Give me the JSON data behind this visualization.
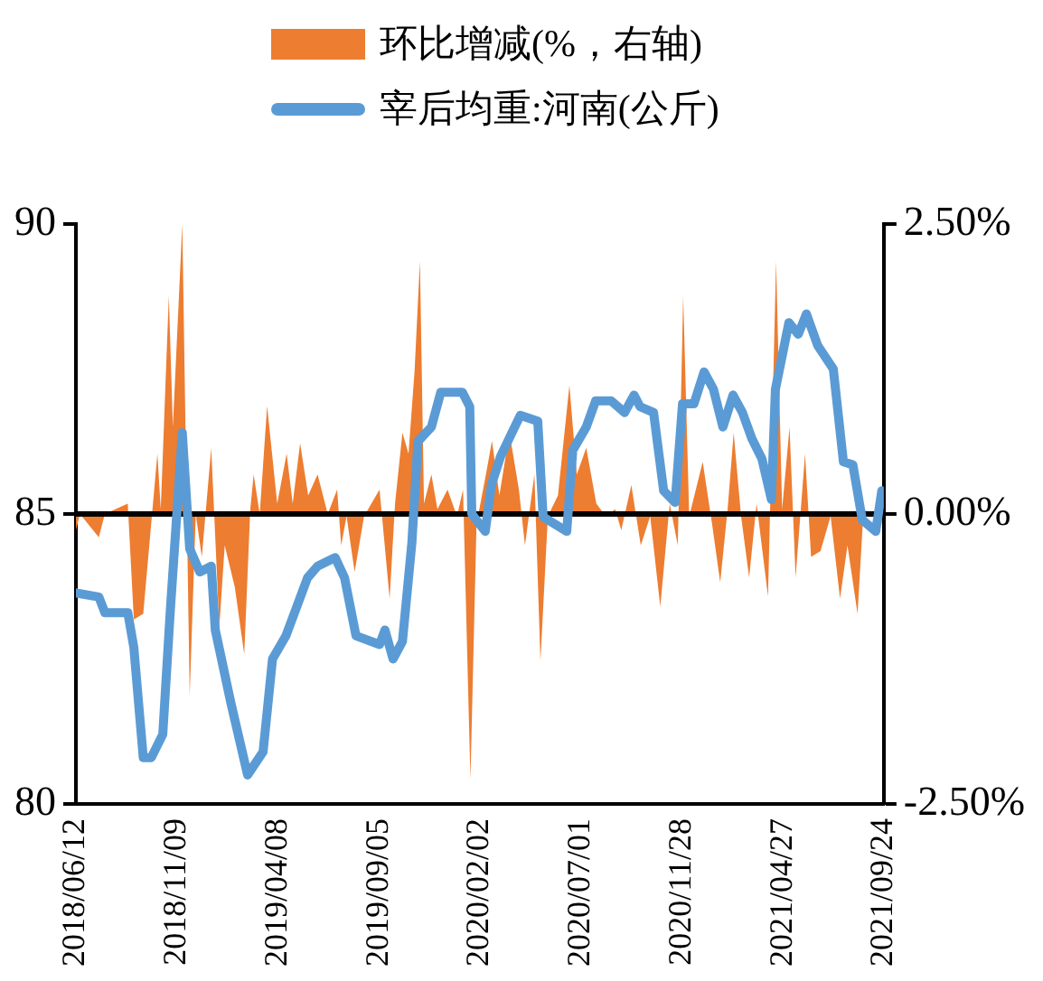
{
  "chart_data": {
    "type": "line",
    "legend": "top",
    "xlim": [
      "2018-06-12",
      "2021-09-24"
    ],
    "xticks": [
      {
        "value": "2018-06-12",
        "label": "2018/06/12"
      },
      {
        "value": "2018-11-09",
        "label": "2018/11/09"
      },
      {
        "value": "2019-04-08",
        "label": "2019/04/08"
      },
      {
        "value": "2019-09-05",
        "label": "2019/09/05"
      },
      {
        "value": "2020-02-02",
        "label": "2020/02/02"
      },
      {
        "value": "2020-07-01",
        "label": "2020/07/01"
      },
      {
        "value": "2020-11-28",
        "label": "2020/11/28"
      },
      {
        "value": "2021-04-27",
        "label": "2021/04/27"
      },
      {
        "value": "2021-09-24",
        "label": "2021/09/24"
      }
    ],
    "ylim": [
      80,
      90
    ],
    "yticks": [
      80,
      85,
      90
    ],
    "y2lim": [
      -2.5,
      2.5
    ],
    "y2ticks": [
      {
        "value": -2.5,
        "label": "-2.50%"
      },
      {
        "value": 0,
        "label": "0.00%"
      },
      {
        "value": 2.5,
        "label": "2.50%"
      }
    ],
    "ref_lines": [
      {
        "axis": "y2",
        "value": 0,
        "color": "#000000"
      }
    ],
    "series": [
      {
        "name": "环比增减(%，右轴)",
        "type": "area",
        "axis": "y2",
        "color": "#ed7d31",
        "x": [
          "2018-06-12",
          "2018-06-18",
          "2018-07-16",
          "2018-07-25",
          "2018-08-28",
          "2018-09-06",
          "2018-09-20",
          "2018-10-11",
          "2018-10-16",
          "2018-10-28",
          "2018-11-03",
          "2018-11-17",
          "2018-11-28",
          "2018-12-07",
          "2018-12-16",
          "2018-12-30",
          "2019-01-11",
          "2019-01-19",
          "2019-02-03",
          "2019-02-17",
          "2019-02-26",
          "2019-03-03",
          "2019-03-12",
          "2019-03-23",
          "2019-04-07",
          "2019-04-21",
          "2019-04-30",
          "2019-05-11",
          "2019-05-23",
          "2019-06-06",
          "2019-06-21",
          "2019-07-05",
          "2019-07-11",
          "2019-07-19",
          "2019-07-31",
          "2019-08-14",
          "2019-09-06",
          "2019-09-21",
          "2019-09-29",
          "2019-10-10",
          "2019-10-19",
          "2019-10-28",
          "2019-11-05",
          "2019-11-11",
          "2019-11-22",
          "2019-12-01",
          "2019-12-16",
          "2019-12-30",
          "2020-01-08",
          "2020-01-19",
          "2020-01-28",
          "2020-02-11",
          "2020-02-20",
          "2020-03-02",
          "2020-03-17",
          "2020-03-31",
          "2020-04-09",
          "2020-04-23",
          "2020-05-02",
          "2020-05-13",
          "2020-05-28",
          "2020-06-14",
          "2020-06-25",
          "2020-07-09",
          "2020-07-24",
          "2020-08-07",
          "2020-08-21",
          "2020-08-30",
          "2020-09-14",
          "2020-09-28",
          "2020-10-12",
          "2020-10-27",
          "2020-11-10",
          "2020-11-22",
          "2020-11-30",
          "2020-12-09",
          "2020-12-29",
          "2021-01-12",
          "2021-01-24",
          "2021-02-04",
          "2021-02-13",
          "2021-02-24",
          "2021-03-08",
          "2021-03-19",
          "2021-04-05",
          "2021-04-17",
          "2021-04-26",
          "2021-05-07",
          "2021-05-16",
          "2021-05-30",
          "2021-06-08",
          "2021-06-22",
          "2021-07-07",
          "2021-07-21",
          "2021-08-01",
          "2021-08-16",
          "2021-08-25",
          "2021-09-08",
          "2021-09-21"
        ],
        "values": [
          -0.14,
          0,
          -0.2,
          0,
          0.09,
          -0.91,
          -0.86,
          0.52,
          0.04,
          1.88,
          0.75,
          2.5,
          -1.57,
          0,
          -0.37,
          0.57,
          -0.98,
          -0.27,
          -0.63,
          -1.21,
          0.04,
          0.34,
          0,
          0.93,
          0.09,
          0.52,
          0.09,
          0.61,
          0.16,
          0.34,
          0,
          0.21,
          -0.27,
          -0.02,
          -0.5,
          -0.02,
          0.21,
          -0.73,
          0.09,
          0.7,
          0.52,
          1.23,
          2.18,
          0.09,
          0.34,
          0.04,
          0.21,
          -0.02,
          0.21,
          -2.29,
          -0.09,
          0.34,
          0.63,
          0.16,
          0.7,
          0.21,
          -0.27,
          0.34,
          -1.27,
          -0.02,
          0.16,
          1.11,
          0.34,
          0.57,
          0.09,
          -0.02,
          0.04,
          -0.14,
          0.25,
          -0.27,
          -0.02,
          -0.8,
          0.09,
          -0.27,
          1.88,
          -0.02,
          0.45,
          -0.09,
          -0.59,
          0.04,
          0.7,
          -0.02,
          -0.55,
          0.09,
          -0.71,
          2.18,
          0.04,
          0.75,
          -0.55,
          0.52,
          -0.37,
          -0.32,
          -0.02,
          -0.73,
          -0.27,
          -0.86,
          0.04,
          -0.02,
          -0.09
        ]
      },
      {
        "name": "宰后均重:河南(公斤)",
        "type": "line",
        "axis": "y",
        "color": "#5b9bd5",
        "x": [
          "2018-06-12",
          "2018-07-16",
          "2018-07-25",
          "2018-08-28",
          "2018-09-06",
          "2018-09-20",
          "2018-10-02",
          "2018-10-19",
          "2018-10-30",
          "2018-11-17",
          "2018-11-28",
          "2018-12-13",
          "2018-12-30",
          "2019-01-05",
          "2019-01-28",
          "2019-02-22",
          "2019-03-17",
          "2019-03-31",
          "2019-04-20",
          "2019-05-22",
          "2019-06-06",
          "2019-07-02",
          "2019-07-16",
          "2019-08-02",
          "2019-09-06",
          "2019-09-14",
          "2019-09-26",
          "2019-10-10",
          "2019-10-24",
          "2019-11-02",
          "2019-11-22",
          "2019-12-06",
          "2020-01-07",
          "2020-01-18",
          "2020-01-21",
          "2020-02-10",
          "2020-02-19",
          "2020-03-04",
          "2020-04-02",
          "2020-04-28",
          "2020-05-06",
          "2020-06-10",
          "2020-06-19",
          "2020-07-09",
          "2020-07-23",
          "2020-08-15",
          "2020-09-04",
          "2020-09-18",
          "2020-09-27",
          "2020-10-17",
          "2020-11-01",
          "2020-11-18",
          "2020-11-29",
          "2020-12-16",
          "2020-12-31",
          "2021-01-14",
          "2021-01-28",
          "2021-02-12",
          "2021-02-26",
          "2021-03-12",
          "2021-03-27",
          "2021-04-10",
          "2021-04-16",
          "2021-05-06",
          "2021-05-20",
          "2021-06-01",
          "2021-06-18",
          "2021-07-11",
          "2021-07-26",
          "2021-08-09",
          "2021-08-23",
          "2021-09-12",
          "2021-09-21"
        ],
        "values": [
          83.64,
          83.57,
          83.3,
          83.3,
          82.7,
          80.8,
          80.8,
          81.2,
          83.3,
          86.4,
          84.4,
          84.0,
          84.1,
          83.0,
          81.75,
          80.5,
          80.9,
          82.5,
          82.9,
          83.9,
          84.1,
          84.25,
          83.9,
          82.9,
          82.75,
          83.0,
          82.5,
          82.8,
          84.5,
          86.25,
          86.5,
          87.1,
          87.1,
          86.85,
          85.0,
          84.7,
          85.5,
          86.0,
          86.7,
          86.6,
          84.95,
          84.7,
          86.1,
          86.5,
          86.95,
          86.95,
          86.75,
          87.05,
          86.85,
          86.75,
          85.4,
          85.2,
          86.9,
          86.9,
          87.45,
          87.15,
          86.5,
          87.05,
          86.75,
          86.3,
          85.95,
          85.25,
          87.15,
          88.3,
          88.1,
          88.45,
          87.9,
          87.5,
          85.9,
          85.85,
          84.9,
          84.7,
          85.4
        ]
      }
    ]
  }
}
